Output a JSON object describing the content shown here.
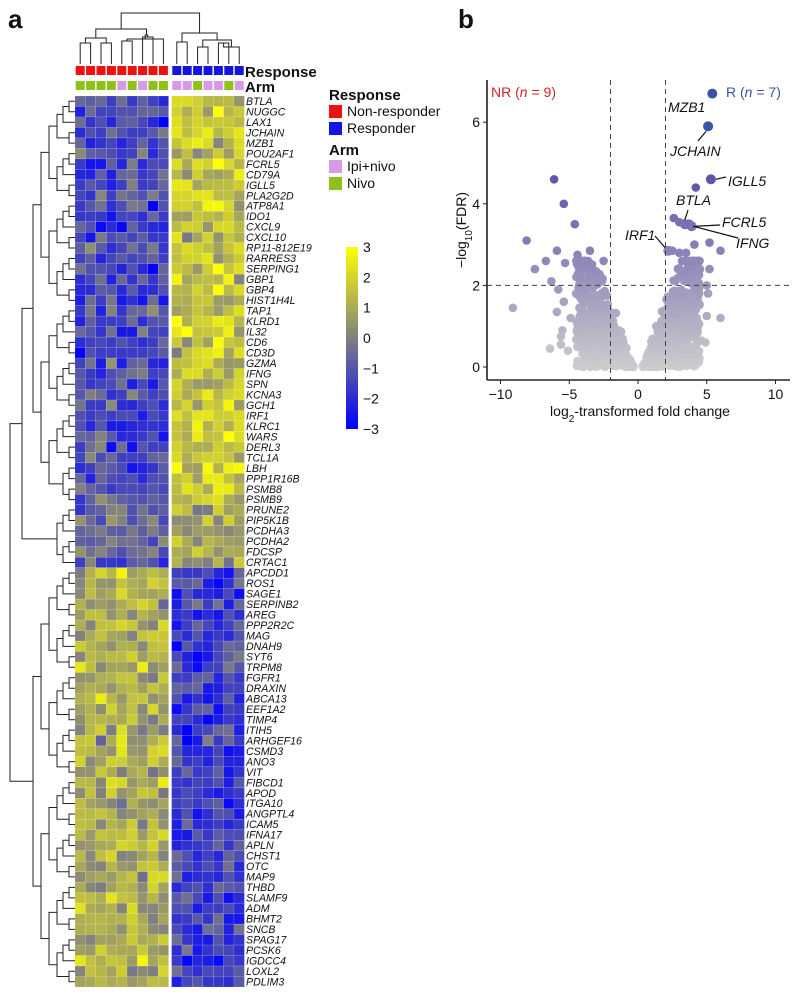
{
  "chart_data": [
    {
      "panel": "a",
      "type": "heatmap",
      "title": "",
      "columns": {
        "count": 16,
        "response": [
          "Non-responder",
          "Non-responder",
          "Non-responder",
          "Non-responder",
          "Non-responder",
          "Non-responder",
          "Non-responder",
          "Non-responder",
          "Non-responder",
          "Responder",
          "Responder",
          "Responder",
          "Responder",
          "Responder",
          "Responder",
          "Responder"
        ],
        "arm": [
          "Nivo",
          "Nivo",
          "Nivo",
          "Nivo",
          "Ipi+nivo",
          "Nivo",
          "Ipi+nivo",
          "Nivo",
          "Nivo",
          "Ipi+nivo",
          "Ipi+nivo",
          "Nivo",
          "Ipi+nivo",
          "Ipi+nivo",
          "Nivo",
          "Ipi+nivo"
        ]
      },
      "annotation_labels": [
        "Response",
        "Arm"
      ],
      "genes": [
        "BTLA",
        "NUGGC",
        "LAX1",
        "JCHAIN",
        "MZB1",
        "POU2AF1",
        "FCRL5",
        "CD79A",
        "IGLL5",
        "PLA2G2D",
        "ATP8A1",
        "IDO1",
        "CXCL9",
        "CXCL10",
        "RP11-812E19",
        "RARRES3",
        "SERPING1",
        "GBP1",
        "GBP4",
        "HIST1H4L",
        "TAP1",
        "KLRD1",
        "IL32",
        "CD6",
        "CD3D",
        "GZMA",
        "IFNG",
        "SPN",
        "KCNA3",
        "GCH1",
        "IRF1",
        "KLRC1",
        "WARS",
        "DERL3",
        "TCL1A",
        "LBH",
        "PPP1R16B",
        "PSMB8",
        "PSMB9",
        "PRUNE2",
        "PIP5K1B",
        "PCDHA3",
        "PCDHA2",
        "FDCSP",
        "CRTAC1",
        "APCDD1",
        "ROS1",
        "SAGE1",
        "SERPINB2",
        "AREG",
        "PPP2R2C",
        "MAG",
        "DNAH9",
        "SYT6",
        "TRPM8",
        "FGFR1",
        "DRAXIN",
        "ABCA13",
        "EEF1A2",
        "TIMP4",
        "ITIH5",
        "ARHGEF16",
        "CSMD3",
        "ANO3",
        "VIT",
        "FIBCD1",
        "APOD",
        "ITGA10",
        "ANGPTL4",
        "ICAM5",
        "IFNA17",
        "APLN",
        "CHST1",
        "OTC",
        "MAP9",
        "THBD",
        "SLAMF9",
        "ADM",
        "BHMT2",
        "SNCB",
        "SPAG17",
        "PCSK6",
        "IGDCC4",
        "LOXL2",
        "PDLIM3"
      ],
      "gene_groups": [
        {
          "from": "BTLA",
          "to": "PSMB9",
          "nonresponder_mean": -1.3,
          "responder_mean": 1.6
        },
        {
          "from": "PRUNE2",
          "to": "CRTAC1",
          "nonresponder_mean": -0.8,
          "responder_mean": 0.8
        },
        {
          "from": "APCDD1",
          "to": "PDLIM3",
          "nonresponder_mean": 1.0,
          "responder_mean": -1.5
        }
      ],
      "color_scale": {
        "min": -3,
        "mid": 0,
        "max": 3,
        "min_color": "#0000ff",
        "mid_color": "#808080",
        "max_color": "#ffff00",
        "ticks": [
          "3",
          "2",
          "1",
          "0",
          "−1",
          "−2",
          "−3"
        ]
      },
      "legend": {
        "response_title": "Response",
        "response_items": [
          {
            "label": "Non-responder",
            "color": "#ee1111"
          },
          {
            "label": "Responder",
            "color": "#1515e0"
          }
        ],
        "arm_title": "Arm",
        "arm_items": [
          {
            "label": "Ipi+nivo",
            "color": "#d89ae6"
          },
          {
            "label": "Nivo",
            "color": "#8ec21a"
          }
        ]
      }
    },
    {
      "panel": "b",
      "type": "scatter",
      "title": "",
      "xlabel": "log2-transformed fold change",
      "ylabel": "−log10(FDR)",
      "xlim": [
        -11,
        11
      ],
      "ylim": [
        -0.3,
        7
      ],
      "xticks": [
        -10,
        -5,
        0,
        5,
        10
      ],
      "xtick_labels": [
        "−10",
        "−5",
        "0",
        "5",
        "10"
      ],
      "yticks": [
        0,
        2,
        4,
        6
      ],
      "threshold_lines": {
        "x": [
          -2,
          2
        ],
        "y": 2
      },
      "group_labels": [
        {
          "text_prefix": "NR (",
          "n_label": "n",
          "text_suffix": " = 9)",
          "color": "#d2232a",
          "position": "top-left"
        },
        {
          "text_prefix": "R (",
          "n_label": "n",
          "text_suffix": " = 7)",
          "color": "#3a55a4",
          "position": "top-right"
        }
      ],
      "labeled_points": [
        {
          "gene": "MZB1",
          "x": 5.4,
          "y": 6.7
        },
        {
          "gene": "JCHAIN",
          "x": 5.1,
          "y": 5.9
        },
        {
          "gene": "IGLL5",
          "x": 5.3,
          "y": 4.6
        },
        {
          "gene": "BTLA",
          "x": 3.4,
          "y": 3.5
        },
        {
          "gene": "FCRL5",
          "x": 3.9,
          "y": 3.45
        },
        {
          "gene": "IFNG",
          "x": 3.7,
          "y": 3.5
        },
        {
          "gene": "IRF1",
          "x": 2.2,
          "y": 2.85
        }
      ],
      "points": [
        {
          "x": 4.2,
          "y": 4.4
        },
        {
          "x": 2.6,
          "y": 3.65
        },
        {
          "x": 3.0,
          "y": 3.55
        },
        {
          "x": 4.1,
          "y": 3.0
        },
        {
          "x": 5.2,
          "y": 3.05
        },
        {
          "x": 6.0,
          "y": 2.85
        },
        {
          "x": 2.5,
          "y": 2.85
        },
        {
          "x": 3.0,
          "y": 2.8
        },
        {
          "x": 3.5,
          "y": 2.8
        },
        {
          "x": 3.2,
          "y": 2.6
        },
        {
          "x": 4.5,
          "y": 2.4
        },
        {
          "x": 5.2,
          "y": 2.4
        },
        {
          "x": 4.2,
          "y": 2.1
        },
        {
          "x": 5.0,
          "y": 2.0
        },
        {
          "x": 5.1,
          "y": 1.8
        },
        {
          "x": 4.2,
          "y": 1.4
        },
        {
          "x": 5.0,
          "y": 1.25
        },
        {
          "x": 6.0,
          "y": 1.2
        },
        {
          "x": 4.6,
          "y": 0.65
        },
        {
          "x": 4.9,
          "y": 0.6
        },
        {
          "x": -6.1,
          "y": 4.6
        },
        {
          "x": -5.4,
          "y": 4.0
        },
        {
          "x": -4.6,
          "y": 3.5
        },
        {
          "x": -8.1,
          "y": 3.1
        },
        {
          "x": -5.9,
          "y": 2.85
        },
        {
          "x": -3.5,
          "y": 2.85
        },
        {
          "x": -4.4,
          "y": 2.75
        },
        {
          "x": -6.7,
          "y": 2.6
        },
        {
          "x": -5.3,
          "y": 2.55
        },
        {
          "x": -2.5,
          "y": 2.6
        },
        {
          "x": -7.5,
          "y": 2.4
        },
        {
          "x": -6.3,
          "y": 2.1
        },
        {
          "x": -5.8,
          "y": 1.9
        },
        {
          "x": -5.4,
          "y": 1.6
        },
        {
          "x": -5.9,
          "y": 1.35
        },
        {
          "x": -9.1,
          "y": 1.45
        },
        {
          "x": -4.9,
          "y": 1.2
        },
        {
          "x": -5.5,
          "y": 0.9
        },
        {
          "x": -5.6,
          "y": 0.75
        },
        {
          "x": -6.4,
          "y": 0.45
        },
        {
          "x": -5.6,
          "y": 0.55
        },
        {
          "x": -5.1,
          "y": 0.4
        }
      ]
    }
  ]
}
